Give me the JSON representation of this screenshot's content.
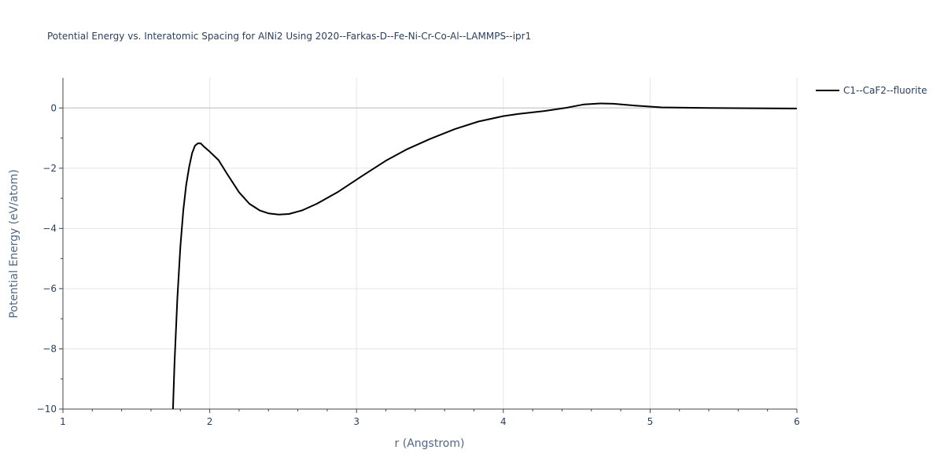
{
  "chart_data": {
    "type": "line",
    "title": "Potential Energy vs. Interatomic Spacing for AlNi2 Using 2020--Farkas-D--Fe-Ni-Cr-Co-Al--LAMMPS--ipr1",
    "xlabel": "r (Angstrom)",
    "ylabel": "Potential Energy (eV/atom)",
    "xlim": [
      1,
      6
    ],
    "ylim": [
      -10,
      1
    ],
    "xticks": [
      1,
      2,
      3,
      4,
      5,
      6
    ],
    "yticks": [
      0,
      -2,
      -4,
      -6,
      -8,
      -10
    ],
    "x_tick_labels": [
      "1",
      "2",
      "3",
      "4",
      "5",
      "6"
    ],
    "y_tick_labels": [
      "0",
      "−2",
      "−4",
      "−6",
      "−8",
      "−10"
    ],
    "grid": true,
    "legend_position": "top-right",
    "series": [
      {
        "name": "C1--CaF2--fluorite",
        "color": "#000000",
        "x": [
          1.75,
          1.76,
          1.78,
          1.8,
          1.82,
          1.84,
          1.86,
          1.88,
          1.9,
          1.92,
          1.94,
          1.96,
          2.0,
          2.06,
          2.12,
          2.2,
          2.27,
          2.34,
          2.4,
          2.47,
          2.54,
          2.63,
          2.73,
          2.87,
          3.04,
          3.2,
          3.34,
          3.5,
          3.67,
          3.83,
          4.0,
          4.1,
          4.28,
          4.42,
          4.55,
          4.66,
          4.75,
          4.9,
          5.08,
          5.4,
          6.0
        ],
        "y": [
          -10.0,
          -8.5,
          -6.3,
          -4.6,
          -3.4,
          -2.55,
          -1.95,
          -1.5,
          -1.25,
          -1.17,
          -1.18,
          -1.28,
          -1.45,
          -1.73,
          -2.2,
          -2.8,
          -3.18,
          -3.4,
          -3.5,
          -3.54,
          -3.52,
          -3.4,
          -3.18,
          -2.8,
          -2.25,
          -1.75,
          -1.38,
          -1.03,
          -0.7,
          -0.45,
          -0.27,
          -0.2,
          -0.1,
          0.0,
          0.12,
          0.15,
          0.14,
          0.08,
          0.02,
          0.0,
          -0.02
        ]
      }
    ]
  }
}
